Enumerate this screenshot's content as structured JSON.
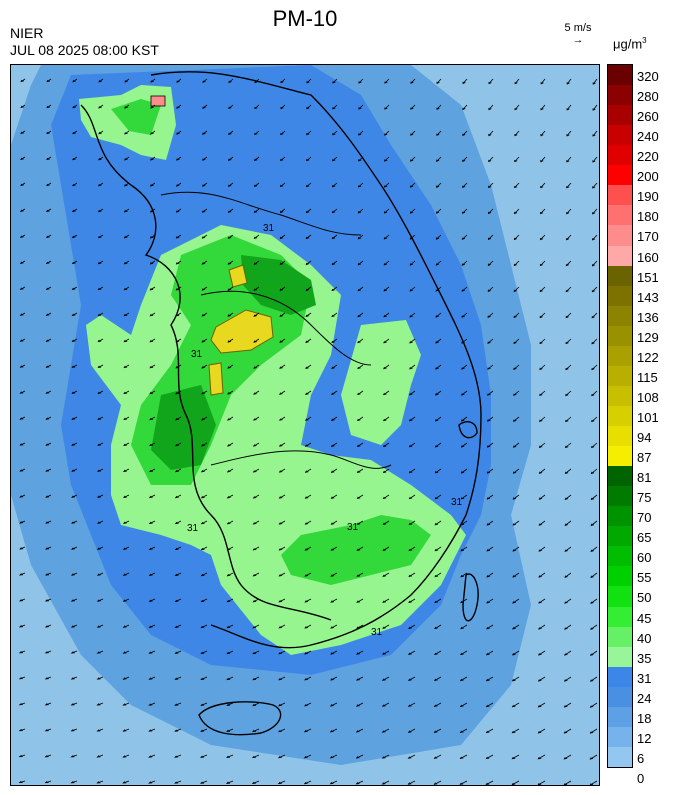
{
  "header": {
    "title": "PM-10",
    "agency": "NIER",
    "timestamp": "JUL 08 2025 08:00 KST",
    "wind_scale": "5 m/s",
    "wind_arrow": "→",
    "unit_base": "μg/m",
    "unit_exp": "3"
  },
  "contour_labels": [
    "31",
    "31",
    "31",
    "31",
    "31",
    "31"
  ],
  "legend": {
    "labels": [
      "320",
      "280",
      "260",
      "240",
      "220",
      "200",
      "190",
      "180",
      "170",
      "160",
      "151",
      "143",
      "136",
      "129",
      "122",
      "115",
      "108",
      "101",
      "94",
      "87",
      "81",
      "75",
      "70",
      "65",
      "60",
      "55",
      "50",
      "45",
      "40",
      "35",
      "31",
      "24",
      "18",
      "12",
      "6",
      "0"
    ],
    "colors": [
      "#6b0000",
      "#8b0000",
      "#a80000",
      "#c80000",
      "#e00000",
      "#ff0000",
      "#ff5050",
      "#ff7070",
      "#ff8c8c",
      "#ffa8a8",
      "#6b6200",
      "#7d7200",
      "#8c8300",
      "#9a9100",
      "#aaa000",
      "#b8af00",
      "#c8bf00",
      "#d8cf00",
      "#e8df00",
      "#f5ee00",
      "#006400",
      "#007b00",
      "#009300",
      "#00a800",
      "#00bd00",
      "#00d000",
      "#11e011",
      "#33ee33",
      "#66f066",
      "#99f599",
      "#3c86e8",
      "#4a90e2",
      "#5ea0e6",
      "#76b2ec",
      "#93c7f0"
    ]
  },
  "colors": {
    "sea_far": "#8fc3e8",
    "sea_mid": "#5aa0e0",
    "land_blue": "#3f87e6",
    "green_light": "#96f58f",
    "green_mid": "#33d83a",
    "green_dark": "#10a51a",
    "yellow": "#e8d820"
  }
}
